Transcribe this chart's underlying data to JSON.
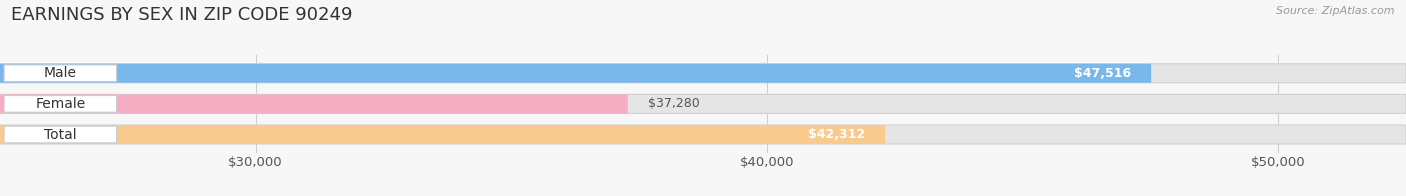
{
  "title": "EARNINGS BY SEX IN ZIP CODE 90249",
  "source_text": "Source: ZipAtlas.com",
  "categories": [
    "Male",
    "Female",
    "Total"
  ],
  "values": [
    47516,
    37280,
    42312
  ],
  "bar_colors": [
    "#7ab8ec",
    "#f5adc4",
    "#f9ca8e"
  ],
  "label_inside": [
    true,
    false,
    true
  ],
  "value_label_colors_inside": [
    "#ffffff",
    "#666666",
    "#ffffff"
  ],
  "xmin": 25000,
  "xmax": 52500,
  "data_min": 0,
  "xticks": [
    30000,
    40000,
    50000
  ],
  "xtick_labels": [
    "$30,000",
    "$40,000",
    "$50,000"
  ],
  "bar_height": 0.62,
  "background_color": "#f7f7f7",
  "bar_background_color": "#e5e5e5",
  "title_fontsize": 13,
  "axis_fontsize": 9.5,
  "value_fontsize": 9,
  "label_fontsize": 10
}
